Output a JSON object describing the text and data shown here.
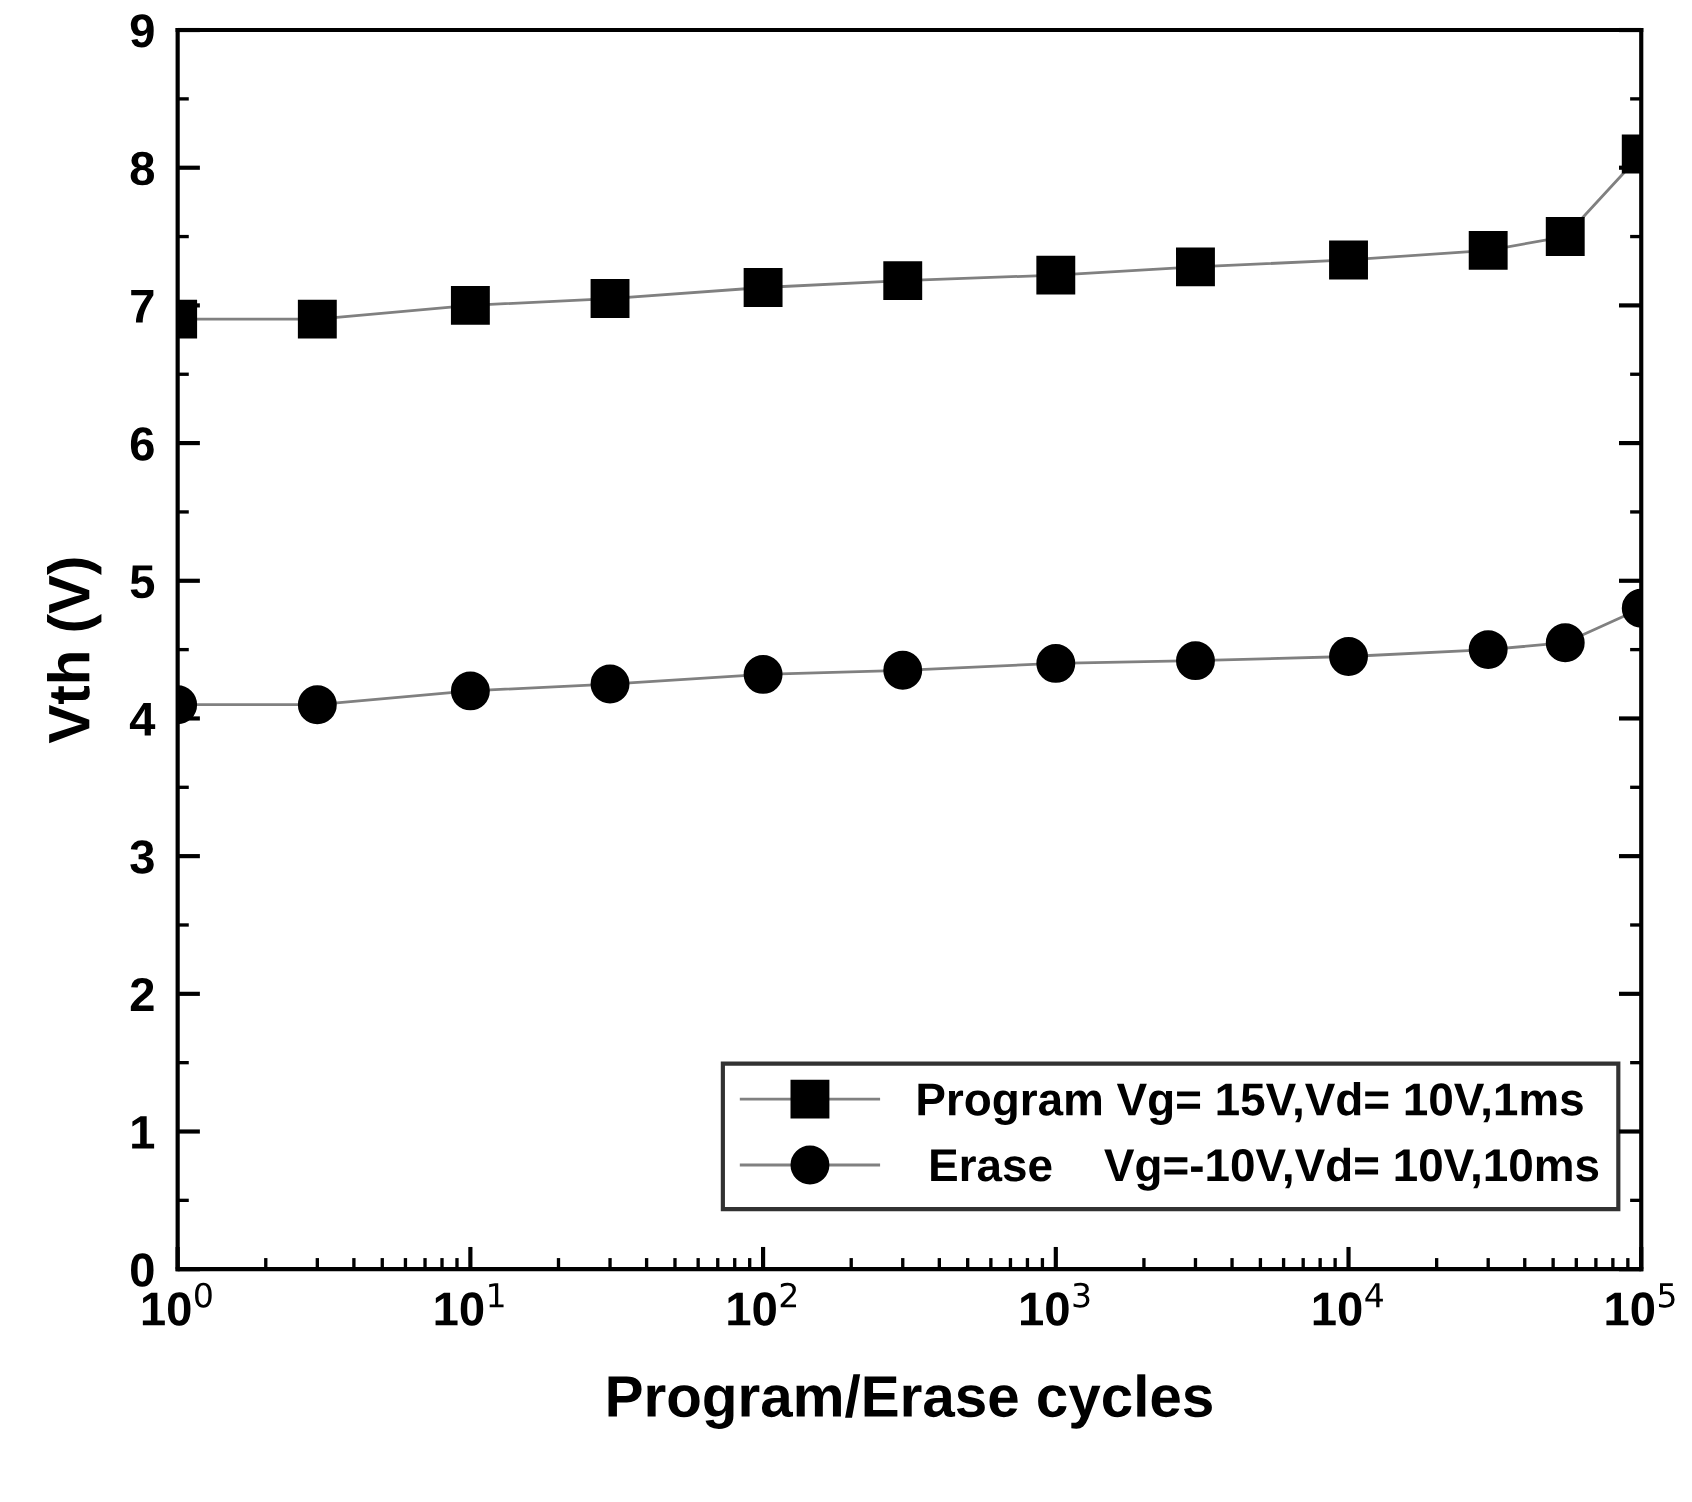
{
  "chart_data": {
    "type": "line",
    "xlabel": "Program/Erase cycles",
    "ylabel": "Vth (V)",
    "log": "x",
    "xlim": [
      1,
      100000
    ],
    "ylim": [
      0,
      9
    ],
    "xticks": [
      {
        "value": 1,
        "label": "10$^{0}$"
      },
      {
        "value": 10,
        "label": "10$^{1}$"
      },
      {
        "value": 100,
        "label": "10$^{2}$"
      },
      {
        "value": 1000,
        "label": "10$^{3}$"
      },
      {
        "value": 10000,
        "label": "10$^{4}$"
      },
      {
        "value": 100000,
        "label": "10$^{5}$"
      }
    ],
    "yticks": [
      0,
      1,
      2,
      3,
      4,
      5,
      6,
      7,
      8,
      9
    ],
    "x": [
      1,
      3,
      10,
      30,
      100,
      300,
      1000,
      3000,
      10000,
      30000,
      55000,
      100000
    ],
    "grid": false,
    "legend": "bottom right",
    "line_style": "solid",
    "series": [
      {
        "name": "Program Vg= 15V,Vd= 10V,1ms",
        "color": "#000000",
        "marker": "square",
        "values": [
          6.9,
          6.9,
          7.0,
          7.05,
          7.13,
          7.18,
          7.22,
          7.28,
          7.33,
          7.4,
          7.5,
          8.1
        ]
      },
      {
        "name": " Erase    Vg=-10V,Vd= 10V,10ms",
        "color": "#000000",
        "marker": "circle",
        "values": [
          4.1,
          4.1,
          4.2,
          4.25,
          4.32,
          4.35,
          4.4,
          4.42,
          4.45,
          4.5,
          4.55,
          4.8
        ]
      }
    ]
  }
}
